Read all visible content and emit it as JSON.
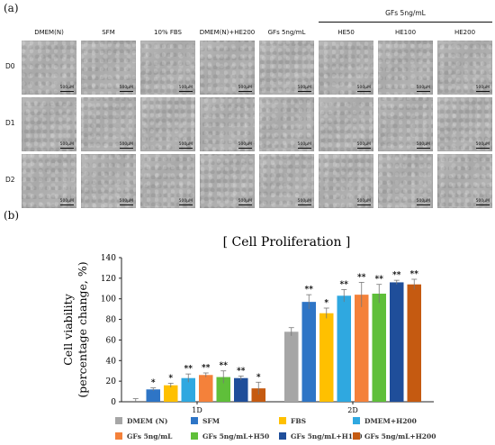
{
  "panel_a": {
    "label": "(a)",
    "columns": [
      "DMEM(N)",
      "SFM",
      "10% FBS",
      "DMEM(N)+HE200",
      "GFs 5ng/mL",
      "HE50",
      "HE100",
      "HE200"
    ],
    "group_header": "GFs 5ng/mL",
    "rows": [
      "D0",
      "D1",
      "D2"
    ],
    "scale_text": "500μM"
  },
  "panel_b": {
    "label": "(b)"
  },
  "chart_data": {
    "type": "bar",
    "title": "[ Cell Proliferation ]",
    "ylabel": "Cell viability\n(percentage change, %)",
    "xlabel": "",
    "ylim": [
      0,
      140
    ],
    "yticks": [
      0,
      20,
      40,
      60,
      80,
      100,
      120,
      140
    ],
    "categories": [
      "1D",
      "2D"
    ],
    "series": [
      {
        "name": "DMEM (N)",
        "color": "#a6a6a6",
        "values": [
          0,
          68
        ],
        "errors": [
          3,
          4
        ],
        "sig": [
          "",
          ""
        ]
      },
      {
        "name": "SFM",
        "color": "#2e75c6",
        "values": [
          12,
          97
        ],
        "errors": [
          1.5,
          7
        ],
        "sig": [
          "*",
          "**"
        ]
      },
      {
        "name": "FBS",
        "color": "#ffc000",
        "values": [
          16,
          86
        ],
        "errors": [
          2,
          5
        ],
        "sig": [
          "*",
          "*"
        ]
      },
      {
        "name": "DMEM+H200",
        "color": "#2fa8e0",
        "values": [
          23,
          103
        ],
        "errors": [
          4,
          6
        ],
        "sig": [
          "**",
          "**"
        ]
      },
      {
        "name": "GFs 5ng/mL",
        "color": "#f4813a",
        "values": [
          26,
          104
        ],
        "errors": [
          2,
          12
        ],
        "sig": [
          "**",
          "**"
        ]
      },
      {
        "name": "GFs 5ng/mL+H50",
        "color": "#5fbf3a",
        "values": [
          24,
          105
        ],
        "errors": [
          6,
          9
        ],
        "sig": [
          "**",
          "**"
        ]
      },
      {
        "name": "GFs 5ng/mL+H100",
        "color": "#1f4e9a",
        "values": [
          23,
          116
        ],
        "errors": [
          2,
          2
        ],
        "sig": [
          "**",
          "**"
        ]
      },
      {
        "name": "GFs 5ng/mL+H200",
        "color": "#c55a11",
        "values": [
          13,
          114
        ],
        "errors": [
          6,
          5
        ],
        "sig": [
          "*",
          "**"
        ]
      }
    ],
    "legend_position": "bottom",
    "grid": false
  }
}
